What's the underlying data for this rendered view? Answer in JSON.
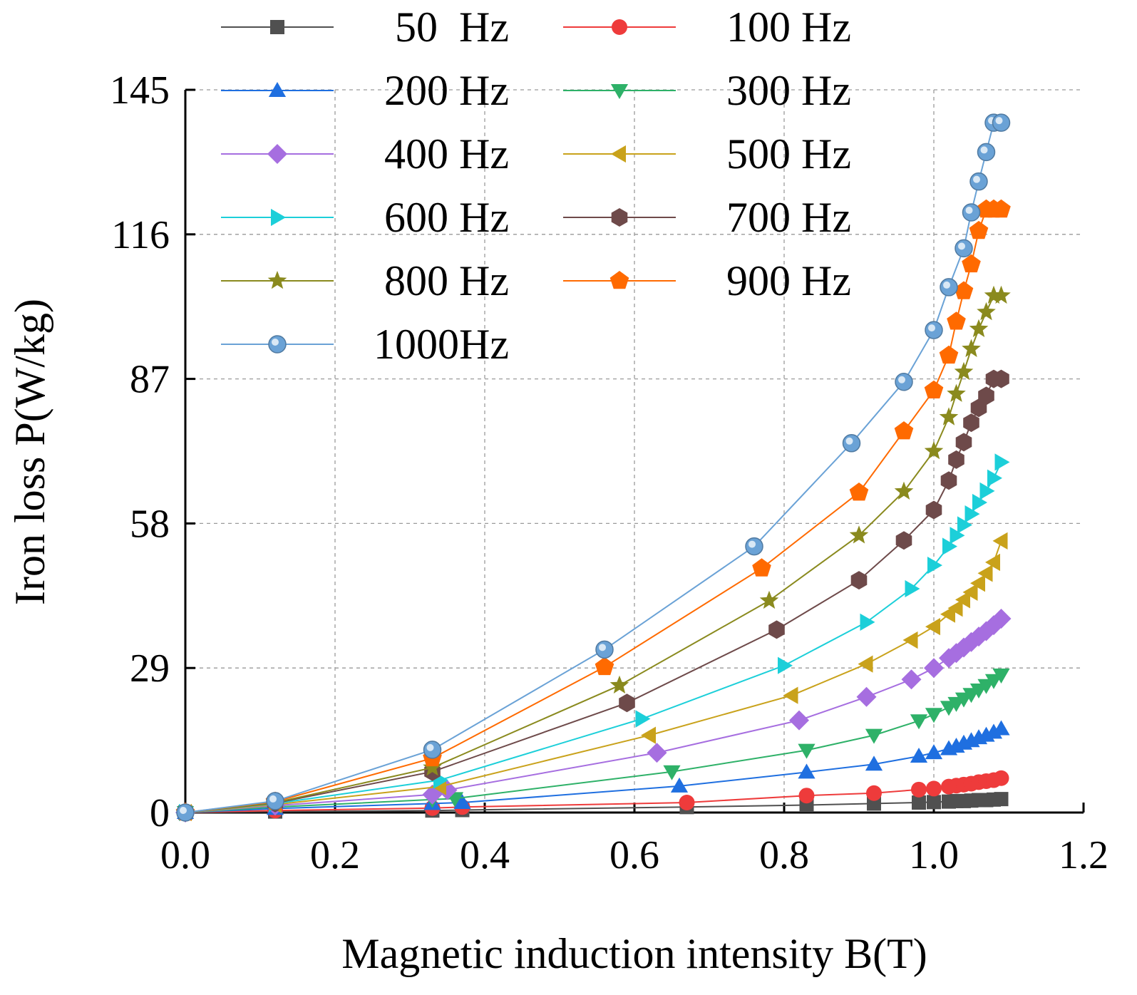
{
  "chart_data": {
    "type": "line",
    "title": "",
    "xlabel": "Magnetic induction intensity B(T)",
    "ylabel": "Iron loss P(W/kg)",
    "xlim": [
      0.0,
      1.2
    ],
    "ylim": [
      0,
      145
    ],
    "xticks": [
      "0.0",
      "0.2",
      "0.4",
      "0.6",
      "0.8",
      "1.0",
      "1.2"
    ],
    "yticks": [
      "0",
      "29",
      "58",
      "87",
      "116",
      "145"
    ],
    "grid": "dashed",
    "legend_position": "top-left",
    "series": [
      {
        "name": "50  Hz",
        "color": "#505050",
        "marker": "square",
        "x": [
          0,
          0.12,
          0.33,
          0.37,
          0.67,
          0.83,
          0.92,
          0.98,
          1.0,
          1.02,
          1.03,
          1.04,
          1.05,
          1.06,
          1.07,
          1.08,
          1.09
        ],
        "y": [
          0,
          0.2,
          0.4,
          0.5,
          1.1,
          1.5,
          1.8,
          2.0,
          2.1,
          2.2,
          2.3,
          2.3,
          2.4,
          2.5,
          2.5,
          2.6,
          2.7
        ]
      },
      {
        "name": "100 Hz",
        "color": "#ee3b3b",
        "marker": "circle",
        "x": [
          0,
          0.12,
          0.33,
          0.37,
          0.67,
          0.83,
          0.92,
          0.98,
          1.0,
          1.02,
          1.03,
          1.04,
          1.05,
          1.06,
          1.07,
          1.08,
          1.09
        ],
        "y": [
          0,
          0.4,
          0.9,
          1.1,
          2.0,
          3.4,
          3.9,
          4.6,
          4.8,
          5.2,
          5.4,
          5.6,
          5.8,
          6.1,
          6.3,
          6.5,
          6.9
        ]
      },
      {
        "name": "200 Hz",
        "color": "#1f6fe0",
        "marker": "triangle-up",
        "x": [
          0,
          0.12,
          0.33,
          0.37,
          0.66,
          0.83,
          0.92,
          0.98,
          1.0,
          1.02,
          1.03,
          1.04,
          1.05,
          1.06,
          1.07,
          1.08,
          1.09
        ],
        "y": [
          0,
          0.8,
          1.8,
          2.0,
          5.3,
          8.1,
          9.7,
          11.3,
          12.0,
          12.8,
          13.3,
          13.9,
          14.4,
          15.0,
          15.5,
          16.1,
          16.8
        ]
      },
      {
        "name": "300 Hz",
        "color": "#2eb168",
        "marker": "triangle-down",
        "x": [
          0,
          0.12,
          0.33,
          0.36,
          0.65,
          0.83,
          0.92,
          0.98,
          1.0,
          1.02,
          1.03,
          1.04,
          1.05,
          1.06,
          1.07,
          1.08,
          1.09
        ],
        "y": [
          0,
          1.1,
          2.6,
          2.8,
          8.2,
          12.5,
          15.5,
          18.4,
          19.7,
          21.1,
          21.9,
          22.8,
          23.7,
          24.6,
          25.5,
          26.5,
          27.6
        ]
      },
      {
        "name": "400 Hz",
        "color": "#a66ee0",
        "marker": "diamond",
        "x": [
          0,
          0.12,
          0.33,
          0.35,
          0.63,
          0.82,
          0.91,
          0.97,
          1.0,
          1.02,
          1.03,
          1.04,
          1.05,
          1.06,
          1.07,
          1.08,
          1.09
        ],
        "y": [
          0,
          1.4,
          3.6,
          4.5,
          12.0,
          18.5,
          23.2,
          26.7,
          29.0,
          31.0,
          32.0,
          33.1,
          34.2,
          35.3,
          36.4,
          37.6,
          38.9
        ]
      },
      {
        "name": "500 Hz",
        "color": "#c9a21b",
        "marker": "triangle-left",
        "x": [
          0,
          0.12,
          0.34,
          0.62,
          0.81,
          0.91,
          0.97,
          1.0,
          1.02,
          1.03,
          1.04,
          1.05,
          1.06,
          1.07,
          1.08,
          1.09
        ],
        "y": [
          0,
          1.6,
          5.2,
          15.5,
          23.5,
          29.8,
          34.6,
          37.3,
          39.8,
          41.0,
          42.7,
          44.2,
          46.0,
          48.0,
          50.2,
          54.5
        ]
      },
      {
        "name": "600 Hz",
        "color": "#1ccfd9",
        "marker": "triangle-right",
        "x": [
          0,
          0.12,
          0.34,
          0.61,
          0.8,
          0.91,
          0.97,
          1.0,
          1.02,
          1.03,
          1.04,
          1.05,
          1.06,
          1.07,
          1.08,
          1.09
        ],
        "y": [
          0,
          1.8,
          6.5,
          18.8,
          29.5,
          38.2,
          44.9,
          49.6,
          53.4,
          55.6,
          57.7,
          59.9,
          62.2,
          64.5,
          67.1,
          70.3
        ]
      },
      {
        "name": "700 Hz",
        "color": "#6e4a4a",
        "marker": "hexagon",
        "x": [
          0,
          0.12,
          0.33,
          0.59,
          0.79,
          0.9,
          0.96,
          1.0,
          1.02,
          1.03,
          1.04,
          1.05,
          1.06,
          1.07,
          1.08,
          1.09
        ],
        "y": [
          0,
          1.9,
          8.2,
          22.0,
          36.7,
          46.6,
          54.6,
          60.7,
          66.6,
          70.8,
          74.3,
          78.2,
          81.2,
          83.6,
          87.0,
          87.0
        ]
      },
      {
        "name": "800 Hz",
        "color": "#8a8a1e",
        "marker": "star",
        "x": [
          0,
          0.12,
          0.33,
          0.58,
          0.78,
          0.9,
          0.96,
          1.0,
          1.02,
          1.03,
          1.04,
          1.05,
          1.06,
          1.07,
          1.08,
          1.09
        ],
        "y": [
          0,
          2.0,
          9.0,
          25.5,
          42.5,
          55.6,
          64.4,
          72.5,
          79.3,
          84.0,
          88.4,
          93.0,
          97.0,
          100.4,
          103.7,
          103.7
        ]
      },
      {
        "name": "900 Hz",
        "color": "#ff6a00",
        "marker": "pentagon",
        "x": [
          0,
          0.12,
          0.33,
          0.56,
          0.77,
          0.9,
          0.96,
          1.0,
          1.02,
          1.03,
          1.04,
          1.05,
          1.06,
          1.07,
          1.08,
          1.09
        ],
        "y": [
          0,
          2.2,
          10.9,
          29.2,
          49.0,
          64.2,
          76.5,
          84.7,
          91.7,
          98.5,
          104.6,
          110.0,
          116.7,
          121.0,
          121.0,
          121.0
        ]
      },
      {
        "name": "1000Hz",
        "color": "#6aa2d6",
        "marker": "sphere",
        "x": [
          0,
          0.12,
          0.33,
          0.56,
          0.76,
          0.89,
          0.96,
          1.0,
          1.02,
          1.04,
          1.05,
          1.06,
          1.07,
          1.08,
          1.09
        ],
        "y": [
          0,
          2.3,
          12.6,
          32.7,
          53.4,
          74.1,
          86.4,
          96.8,
          105.4,
          113.2,
          120.4,
          126.6,
          132.5,
          138.4,
          138.4
        ]
      }
    ]
  }
}
